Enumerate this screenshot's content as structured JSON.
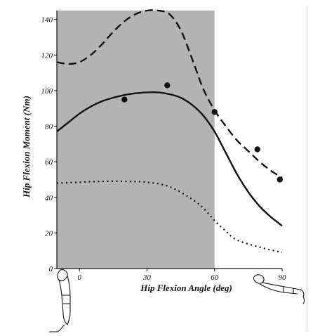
{
  "chart_data": {
    "type": "line",
    "xlabel": "Hip Flexion Angle (deg)",
    "ylabel": "Hip Flexion Moment (Nm)",
    "xlim": [
      -10,
      90
    ],
    "ylim": [
      0,
      145
    ],
    "xticks": [
      0,
      30,
      60,
      90
    ],
    "yticks": [
      0,
      20,
      40,
      60,
      80,
      100,
      120,
      140
    ],
    "shaded_region": {
      "x": [
        -10,
        60
      ],
      "color": "#b3b3b3"
    },
    "series": [
      {
        "style": "dashed",
        "x": [
          -10,
          -5,
          0,
          5,
          10,
          15,
          20,
          25,
          30,
          35,
          40,
          45,
          50,
          55,
          60,
          65,
          70,
          75,
          80,
          85,
          90
        ],
        "y": [
          116,
          115,
          116,
          120,
          126,
          133,
          139,
          143,
          145,
          145,
          143,
          134,
          118,
          101,
          89,
          80,
          72,
          66,
          60,
          55,
          51
        ]
      },
      {
        "style": "solid",
        "x": [
          -10,
          -5,
          0,
          5,
          10,
          15,
          20,
          25,
          30,
          35,
          40,
          45,
          50,
          55,
          60,
          65,
          70,
          75,
          80,
          85,
          90
        ],
        "y": [
          77,
          82,
          87,
          91,
          94,
          96,
          97.5,
          98.5,
          99,
          99,
          98,
          96,
          92,
          86,
          77,
          65,
          53,
          43,
          35,
          29,
          24
        ]
      },
      {
        "style": "dotted",
        "x": [
          -10,
          0,
          10,
          20,
          30,
          40,
          50,
          55,
          60,
          65,
          70,
          80,
          90
        ],
        "y": [
          48,
          48.5,
          49,
          49,
          48.5,
          46,
          39,
          34,
          27,
          21,
          16,
          12,
          9
        ]
      }
    ],
    "points": {
      "x": [
        20,
        39,
        60,
        79,
        89
      ],
      "y": [
        95,
        103,
        88,
        67,
        50
      ]
    }
  }
}
